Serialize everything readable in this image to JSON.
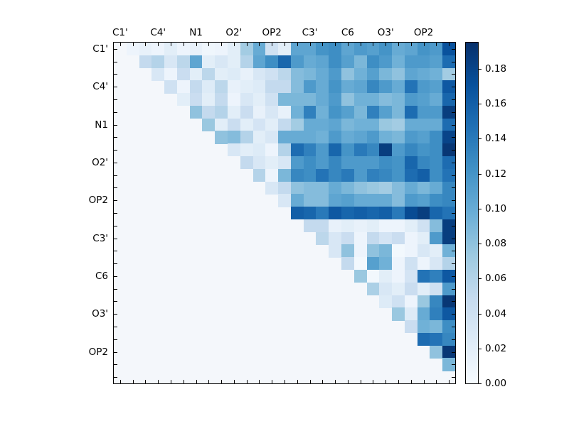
{
  "figure": {
    "background_color": "#ffffff",
    "title": ""
  },
  "chart_data": {
    "type": "heatmap",
    "title": "",
    "xlabel": "",
    "ylabel": "",
    "n_rows": 27,
    "n_cols": 27,
    "matrix_form": "strict-upper-triangle",
    "row_values_start_at_col": "i+1",
    "x_ticklabels": [
      "C1'",
      "C4'",
      "N1",
      "O2'",
      "OP2",
      "C3'",
      "C6",
      "O3'",
      "OP2"
    ],
    "y_ticklabels": [
      "C1'",
      "C4'",
      "N1",
      "O2'",
      "OP2",
      "C3'",
      "C6",
      "O3'",
      "OP2"
    ],
    "ticklabel_positions": [
      0,
      3,
      6,
      9,
      12,
      15,
      18,
      21,
      24
    ],
    "vmin": 0.0,
    "vmax": 0.195,
    "colormap": "Blues",
    "colormap_stops": [
      "#f7fbff",
      "#deebf7",
      "#c6dbef",
      "#9ecae1",
      "#6baed6",
      "#4292c6",
      "#2171b5",
      "#08519c",
      "#08306b"
    ],
    "masked_cell_color": "#f4f7fb",
    "grid": false,
    "colorbar": {
      "position": "right",
      "tick_values": [
        0.0,
        0.02,
        0.04,
        0.06,
        0.08,
        0.1,
        0.12,
        0.14,
        0.16,
        0.18
      ],
      "tick_labels": [
        "0.00",
        "0.02",
        "0.04",
        "0.06",
        "0.08",
        "0.10",
        "0.12",
        "0.14",
        "0.16",
        "0.18"
      ]
    },
    "upper_triangle_values": [
      [
        0.01,
        0.015,
        0.01,
        0.02,
        0.01,
        0.015,
        0.008,
        0.01,
        0.02,
        0.07,
        0.1,
        0.04,
        0.02,
        0.105,
        0.105,
        0.12,
        0.125,
        0.105,
        0.115,
        0.11,
        0.12,
        0.1,
        0.105,
        0.12,
        0.115,
        0.17
      ],
      [
        0.05,
        0.06,
        0.03,
        0.055,
        0.105,
        0.02,
        0.03,
        0.02,
        0.06,
        0.105,
        0.125,
        0.155,
        0.115,
        0.1,
        0.105,
        0.125,
        0.11,
        0.09,
        0.125,
        0.115,
        0.095,
        0.115,
        0.115,
        0.11,
        0.15
      ],
      [
        0.03,
        0.01,
        0.045,
        0.02,
        0.055,
        0.02,
        0.025,
        0.015,
        0.03,
        0.04,
        0.055,
        0.085,
        0.09,
        0.1,
        0.115,
        0.08,
        0.095,
        0.11,
        0.09,
        0.08,
        0.105,
        0.1,
        0.095,
        0.07
      ],
      [
        0.04,
        0.01,
        0.05,
        0.025,
        0.055,
        0.015,
        0.02,
        0.025,
        0.05,
        0.05,
        0.085,
        0.115,
        0.1,
        0.12,
        0.1,
        0.105,
        0.13,
        0.115,
        0.1,
        0.145,
        0.115,
        0.11,
        0.165
      ],
      [
        0.02,
        0.045,
        0.02,
        0.05,
        0.01,
        0.03,
        0.02,
        0.04,
        0.09,
        0.09,
        0.09,
        0.1,
        0.115,
        0.08,
        0.095,
        0.095,
        0.085,
        0.09,
        0.115,
        0.11,
        0.1,
        0.155
      ],
      [
        0.08,
        0.05,
        0.06,
        0.02,
        0.045,
        0.015,
        0.03,
        0.015,
        0.095,
        0.135,
        0.095,
        0.12,
        0.11,
        0.09,
        0.135,
        0.11,
        0.09,
        0.15,
        0.115,
        0.115,
        0.185
      ],
      [
        0.075,
        0.02,
        0.045,
        0.02,
        0.035,
        0.02,
        0.05,
        0.07,
        0.1,
        0.1,
        0.105,
        0.09,
        0.095,
        0.095,
        0.075,
        0.07,
        0.1,
        0.1,
        0.1,
        0.15
      ],
      [
        0.08,
        0.085,
        0.06,
        0.02,
        0.03,
        0.1,
        0.1,
        0.1,
        0.095,
        0.115,
        0.1,
        0.105,
        0.115,
        0.095,
        0.09,
        0.115,
        0.11,
        0.125,
        0.18
      ],
      [
        0.03,
        0.02,
        0.025,
        0.01,
        0.06,
        0.15,
        0.135,
        0.115,
        0.155,
        0.12,
        0.14,
        0.13,
        0.185,
        0.115,
        0.13,
        0.12,
        0.125,
        0.19
      ],
      [
        0.05,
        0.03,
        0.02,
        0.03,
        0.115,
        0.125,
        0.115,
        0.13,
        0.115,
        0.115,
        0.115,
        0.125,
        0.12,
        0.155,
        0.13,
        0.125,
        0.15
      ],
      [
        0.06,
        0.01,
        0.09,
        0.13,
        0.125,
        0.145,
        0.13,
        0.14,
        0.115,
        0.135,
        0.13,
        0.12,
        0.15,
        0.16,
        0.125,
        0.145
      ],
      [
        0.03,
        0.05,
        0.08,
        0.085,
        0.085,
        0.1,
        0.09,
        0.08,
        0.075,
        0.07,
        0.085,
        0.1,
        0.09,
        0.1,
        0.13
      ],
      [
        0.03,
        0.1,
        0.085,
        0.085,
        0.105,
        0.11,
        0.1,
        0.1,
        0.1,
        0.085,
        0.115,
        0.11,
        0.125,
        0.13
      ],
      [
        0.16,
        0.155,
        0.14,
        0.165,
        0.155,
        0.16,
        0.155,
        0.16,
        0.14,
        0.175,
        0.185,
        0.155,
        0.145
      ],
      [
        0.05,
        0.05,
        0.015,
        0.02,
        0.015,
        0.02,
        0.01,
        0.01,
        0.02,
        0.04,
        0.085,
        0.185
      ],
      [
        0.055,
        0.03,
        0.045,
        0.01,
        0.05,
        0.035,
        0.045,
        0.01,
        0.02,
        0.115,
        0.185
      ],
      [
        0.03,
        0.08,
        0.01,
        0.08,
        0.09,
        0.005,
        0.01,
        0.03,
        0.02,
        0.095
      ],
      [
        0.05,
        0.005,
        0.11,
        0.095,
        0.01,
        0.04,
        0.01,
        0.03,
        0.06
      ],
      [
        0.075,
        0.005,
        0.02,
        0.01,
        0.035,
        0.145,
        0.135,
        0.165
      ],
      [
        0.065,
        0.03,
        0.02,
        0.045,
        0.02,
        0.04,
        0.115
      ],
      [
        0.025,
        0.04,
        0.01,
        0.075,
        0.13,
        0.19
      ],
      [
        0.075,
        0.025,
        0.1,
        0.135,
        0.165
      ],
      [
        0.045,
        0.095,
        0.09,
        0.125
      ],
      [
        0.15,
        0.145,
        0.13
      ],
      [
        0.08,
        0.19
      ],
      [
        0.09
      ],
      []
    ]
  }
}
